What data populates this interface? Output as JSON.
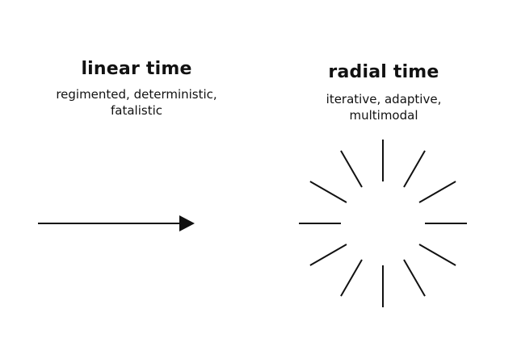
{
  "linear": {
    "title": "linear time",
    "subtitle": "regimented, deterministic,\nfatalistic"
  },
  "radial": {
    "title": "radial time",
    "subtitle": "iterative, adaptive,\nmultimodal"
  },
  "colors": {
    "ink": "#111111",
    "background": "#ffffff"
  },
  "icons": {
    "arrow": "right-arrow-icon",
    "burst": "radial-burst-icon"
  }
}
